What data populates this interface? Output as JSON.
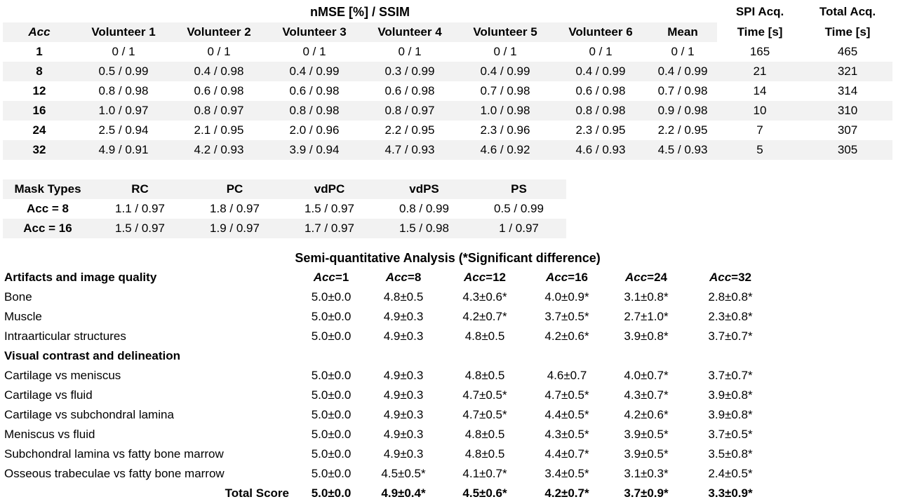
{
  "colors": {
    "stripe": "#f2f2f2",
    "text": "#000000",
    "background": "#ffffff"
  },
  "table1": {
    "title": "nMSE [%] / SSIM",
    "right_headers_line1": [
      "SPI Acq.",
      "Total Acq."
    ],
    "headers": [
      "Acc",
      "Volunteer 1",
      "Volunteer 2",
      "Volunteer 3",
      "Volunteer 4",
      "Volunteer 5",
      "Volunteer 6",
      "Mean",
      "Time [s]",
      "Time [s]"
    ],
    "rows": [
      [
        "1",
        "0 / 1",
        "0 / 1",
        "0 / 1",
        "0 / 1",
        "0 / 1",
        "0 / 1",
        "0 / 1",
        "165",
        "465"
      ],
      [
        "8",
        "0.5 / 0.99",
        "0.4 / 0.98",
        "0.4 / 0.99",
        "0.3 / 0.99",
        "0.4 / 0.99",
        "0.4 / 0.99",
        "0.4 / 0.99",
        "21",
        "321"
      ],
      [
        "12",
        "0.8 / 0.98",
        "0.6 / 0.98",
        "0.6 / 0.98",
        "0.6 / 0.98",
        "0.7 / 0.98",
        "0.6 / 0.98",
        "0.7 / 0.98",
        "14",
        "314"
      ],
      [
        "16",
        "1.0 / 0.97",
        "0.8 / 0.97",
        "0.8 / 0.98",
        "0.8 / 0.97",
        "1.0 / 0.98",
        "0.8 / 0.98",
        "0.9 / 0.98",
        "10",
        "310"
      ],
      [
        "24",
        "2.5 / 0.94",
        "2.1 / 0.95",
        "2.0 / 0.96",
        "2.2 / 0.95",
        "2.3 / 0.96",
        "2.3 / 0.95",
        "2.2 / 0.95",
        "7",
        "307"
      ],
      [
        "32",
        "4.9 / 0.91",
        "4.2 / 0.93",
        "3.9 / 0.94",
        "4.7 / 0.93",
        "4.6 / 0.92",
        "4.6 / 0.93",
        "4.5 / 0.93",
        "5",
        "305"
      ]
    ]
  },
  "table2": {
    "headers": [
      "Mask Types",
      "RC",
      "PC",
      "vdPC",
      "vdPS",
      "PS"
    ],
    "rows": [
      [
        "Acc = 8",
        "1.1 / 0.97",
        "1.8 / 0.97",
        "1.5 / 0.97",
        "0.8 / 0.99",
        "0.5 / 0.99"
      ],
      [
        "Acc = 16",
        "1.5 / 0.97",
        "1.9 / 0.97",
        "1.7 / 0.97",
        "1.5 / 0.98",
        "1 / 0.97"
      ]
    ]
  },
  "table3": {
    "title": "Semi-quantitative Analysis (*Significant difference)",
    "row_header_label": "Artifacts and image quality",
    "acc_headers": [
      {
        "prefix": "Acc",
        "suffix": "=1"
      },
      {
        "prefix": "Acc",
        "suffix": "=8"
      },
      {
        "prefix": "Acc",
        "suffix": "=12"
      },
      {
        "prefix": "Acc",
        "suffix": "=16"
      },
      {
        "prefix": "Acc",
        "suffix": "=24"
      },
      {
        "prefix": "Acc",
        "suffix": "=32"
      }
    ],
    "rows": [
      {
        "label": "Bone",
        "style": "normal",
        "values": [
          "5.0±0.0",
          "4.8±0.5",
          "4.3±0.6*",
          "4.0±0.9*",
          "3.1±0.8*",
          "2.8±0.8*"
        ]
      },
      {
        "label": "Muscle",
        "style": "normal",
        "values": [
          "5.0±0.0",
          "4.9±0.3",
          "4.2±0.7*",
          "3.7±0.5*",
          "2.7±1.0*",
          "2.3±0.8*"
        ]
      },
      {
        "label": "Intraarticular structures",
        "style": "normal",
        "values": [
          "5.0±0.0",
          "4.9±0.3",
          "4.8±0.5",
          "4.2±0.6*",
          "3.9±0.8*",
          "3.7±0.7*"
        ]
      },
      {
        "label": "Visual contrast and delineation",
        "style": "section",
        "values": [
          "",
          "",
          "",
          "",
          "",
          ""
        ]
      },
      {
        "label": "Cartilage vs meniscus",
        "style": "normal",
        "values": [
          "5.0±0.0",
          "4.9±0.3",
          "4.8±0.5",
          "4.6±0.7",
          "4.0±0.7*",
          "3.7±0.7*"
        ]
      },
      {
        "label": "Cartilage vs fluid",
        "style": "normal",
        "values": [
          "5.0±0.0",
          "4.9±0.3",
          "4.7±0.5*",
          "4.7±0.5*",
          "4.3±0.7*",
          "3.9±0.8*"
        ]
      },
      {
        "label": "Cartilage vs subchondral lamina",
        "style": "normal",
        "values": [
          "5.0±0.0",
          "4.9±0.3",
          "4.7±0.5*",
          "4.4±0.5*",
          "4.2±0.6*",
          "3.9±0.8*"
        ]
      },
      {
        "label": "Meniscus vs fluid",
        "style": "normal",
        "values": [
          "5.0±0.0",
          "4.9±0.3",
          "4.8±0.5",
          "4.3±0.5*",
          "3.9±0.5*",
          "3.7±0.5*"
        ]
      },
      {
        "label": "Subchondral lamina vs fatty bone marrow",
        "style": "normal",
        "values": [
          "5.0±0.0",
          "4.9±0.3",
          "4.8±0.5",
          "4.4±0.7*",
          "3.9±0.5*",
          "3.5±0.8*"
        ]
      },
      {
        "label": "Osseous trabeculae vs fatty bone marrow",
        "style": "normal",
        "values": [
          "5.0±0.0",
          "4.5±0.5*",
          "4.1±0.7*",
          "3.4±0.5*",
          "3.1±0.3*",
          "2.4±0.5*"
        ]
      },
      {
        "label": "Total Score",
        "style": "total",
        "values": [
          "5.0±0.0",
          "4.9±0.4*",
          "4.5±0.6*",
          "4.2±0.7*",
          "3.7±0.9*",
          "3.3±0.9*"
        ]
      }
    ]
  }
}
